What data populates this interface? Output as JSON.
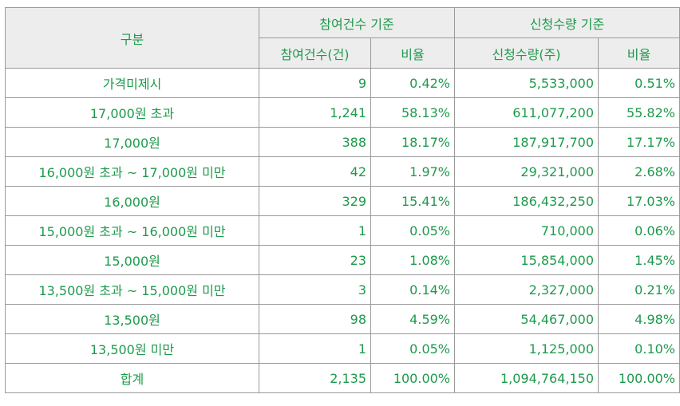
{
  "header": {
    "category": "구분",
    "group_participation": "참여건수 기준",
    "group_application": "신청수량 기준",
    "participation_count": "참여건수(건)",
    "participation_ratio": "비율",
    "application_qty": "신청수량(주)",
    "application_ratio": "비율"
  },
  "rows": [
    {
      "label": "가격미제시",
      "count": "9",
      "count_ratio": "0.42%",
      "qty": "5,533,000",
      "qty_ratio": "0.51%"
    },
    {
      "label": "17,000원 초과",
      "count": "1,241",
      "count_ratio": "58.13%",
      "qty": "611,077,200",
      "qty_ratio": "55.82%"
    },
    {
      "label": "17,000원",
      "count": "388",
      "count_ratio": "18.17%",
      "qty": "187,917,700",
      "qty_ratio": "17.17%"
    },
    {
      "label": "16,000원 초과 ~ 17,000원 미만",
      "count": "42",
      "count_ratio": "1.97%",
      "qty": "29,321,000",
      "qty_ratio": "2.68%"
    },
    {
      "label": "16,000원",
      "count": "329",
      "count_ratio": "15.41%",
      "qty": "186,432,250",
      "qty_ratio": "17.03%"
    },
    {
      "label": "15,000원 초과 ~ 16,000원 미만",
      "count": "1",
      "count_ratio": "0.05%",
      "qty": "710,000",
      "qty_ratio": "0.06%"
    },
    {
      "label": "15,000원",
      "count": "23",
      "count_ratio": "1.08%",
      "qty": "15,854,000",
      "qty_ratio": "1.45%"
    },
    {
      "label": "13,500원 초과 ~ 15,000원 미만",
      "count": "3",
      "count_ratio": "0.14%",
      "qty": "2,327,000",
      "qty_ratio": "0.21%"
    },
    {
      "label": "13,500원",
      "count": "98",
      "count_ratio": "4.59%",
      "qty": "54,467,000",
      "qty_ratio": "4.98%"
    },
    {
      "label": "13,500원 미만",
      "count": "1",
      "count_ratio": "0.05%",
      "qty": "1,125,000",
      "qty_ratio": "0.10%"
    }
  ],
  "total": {
    "label": "합계",
    "count": "2,135",
    "count_ratio": "100.00%",
    "qty": "1,094,764,150",
    "qty_ratio": "100.00%"
  }
}
